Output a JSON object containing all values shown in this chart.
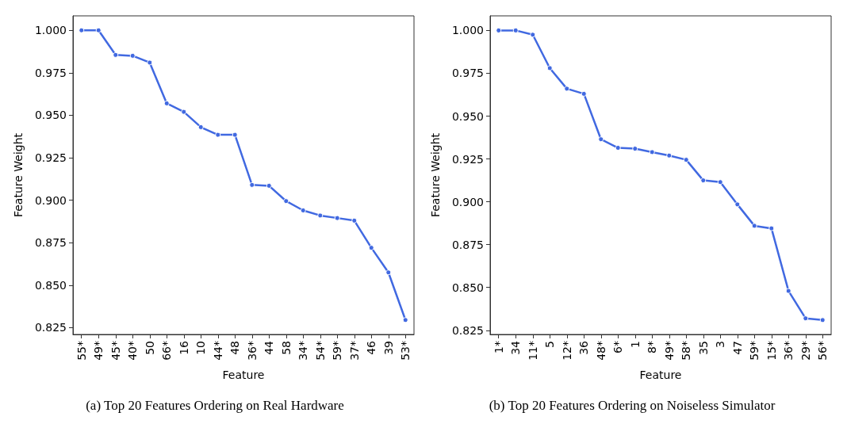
{
  "chart_data": [
    {
      "type": "line",
      "title": "(a) Top 20 Features Ordering on Real Hardware",
      "xlabel": "Feature",
      "ylabel": "Feature Weight",
      "categories": [
        "55*",
        "49*",
        "45*",
        "40*",
        "50",
        "66*",
        "16",
        "10",
        "44*",
        "48",
        "36*",
        "44",
        "58",
        "34*",
        "54*",
        "59*",
        "37*",
        "46",
        "39",
        "53*"
      ],
      "series": [
        {
          "color": "#4169e1",
          "values": [
            1.0,
            1.0,
            0.9855,
            0.985,
            0.981,
            0.957,
            0.952,
            0.943,
            0.9385,
            0.9385,
            0.909,
            0.9085,
            0.8995,
            0.894,
            0.891,
            0.8895,
            0.888,
            0.872,
            0.8575,
            0.8295
          ]
        }
      ],
      "ylim": [
        0.821,
        1.0085
      ],
      "yticks": [
        {
          "value": 0.825,
          "label": "0.825"
        },
        {
          "value": 0.85,
          "label": "0.850"
        },
        {
          "value": 0.875,
          "label": "0.875"
        },
        {
          "value": 0.9,
          "label": "0.900"
        },
        {
          "value": 0.925,
          "label": "0.925"
        },
        {
          "value": 0.95,
          "label": "0.950"
        },
        {
          "value": 0.975,
          "label": "0.975"
        },
        {
          "value": 1.0,
          "label": "1.000"
        }
      ],
      "grid": false,
      "marker": "circle",
      "line_style": "solid"
    },
    {
      "type": "line",
      "title": "(b) Top 20 Features Ordering on Noiseless Simulator",
      "xlabel": "Feature",
      "ylabel": "Feature Weight",
      "categories": [
        "1*",
        "34",
        "11*",
        "5",
        "12*",
        "36",
        "48*",
        "6*",
        "1",
        "8*",
        "49*",
        "58*",
        "35",
        "3",
        "47",
        "59*",
        "15*",
        "36*",
        "29*",
        "56*"
      ],
      "series": [
        {
          "color": "#4169e1",
          "values": [
            1.0,
            1.0,
            0.9975,
            0.978,
            0.966,
            0.963,
            0.9365,
            0.9315,
            0.931,
            0.929,
            0.927,
            0.9245,
            0.9125,
            0.9115,
            0.8985,
            0.886,
            0.8845,
            0.848,
            0.832,
            0.831
          ]
        }
      ],
      "ylim": [
        0.8226,
        1.0085
      ],
      "yticks": [
        {
          "value": 0.825,
          "label": "0.825"
        },
        {
          "value": 0.85,
          "label": "0.850"
        },
        {
          "value": 0.875,
          "label": "0.875"
        },
        {
          "value": 0.9,
          "label": "0.900"
        },
        {
          "value": 0.925,
          "label": "0.925"
        },
        {
          "value": 0.95,
          "label": "0.950"
        },
        {
          "value": 0.975,
          "label": "0.975"
        },
        {
          "value": 1.0,
          "label": "1.000"
        }
      ],
      "grid": false,
      "marker": "circle",
      "line_style": "solid"
    }
  ]
}
